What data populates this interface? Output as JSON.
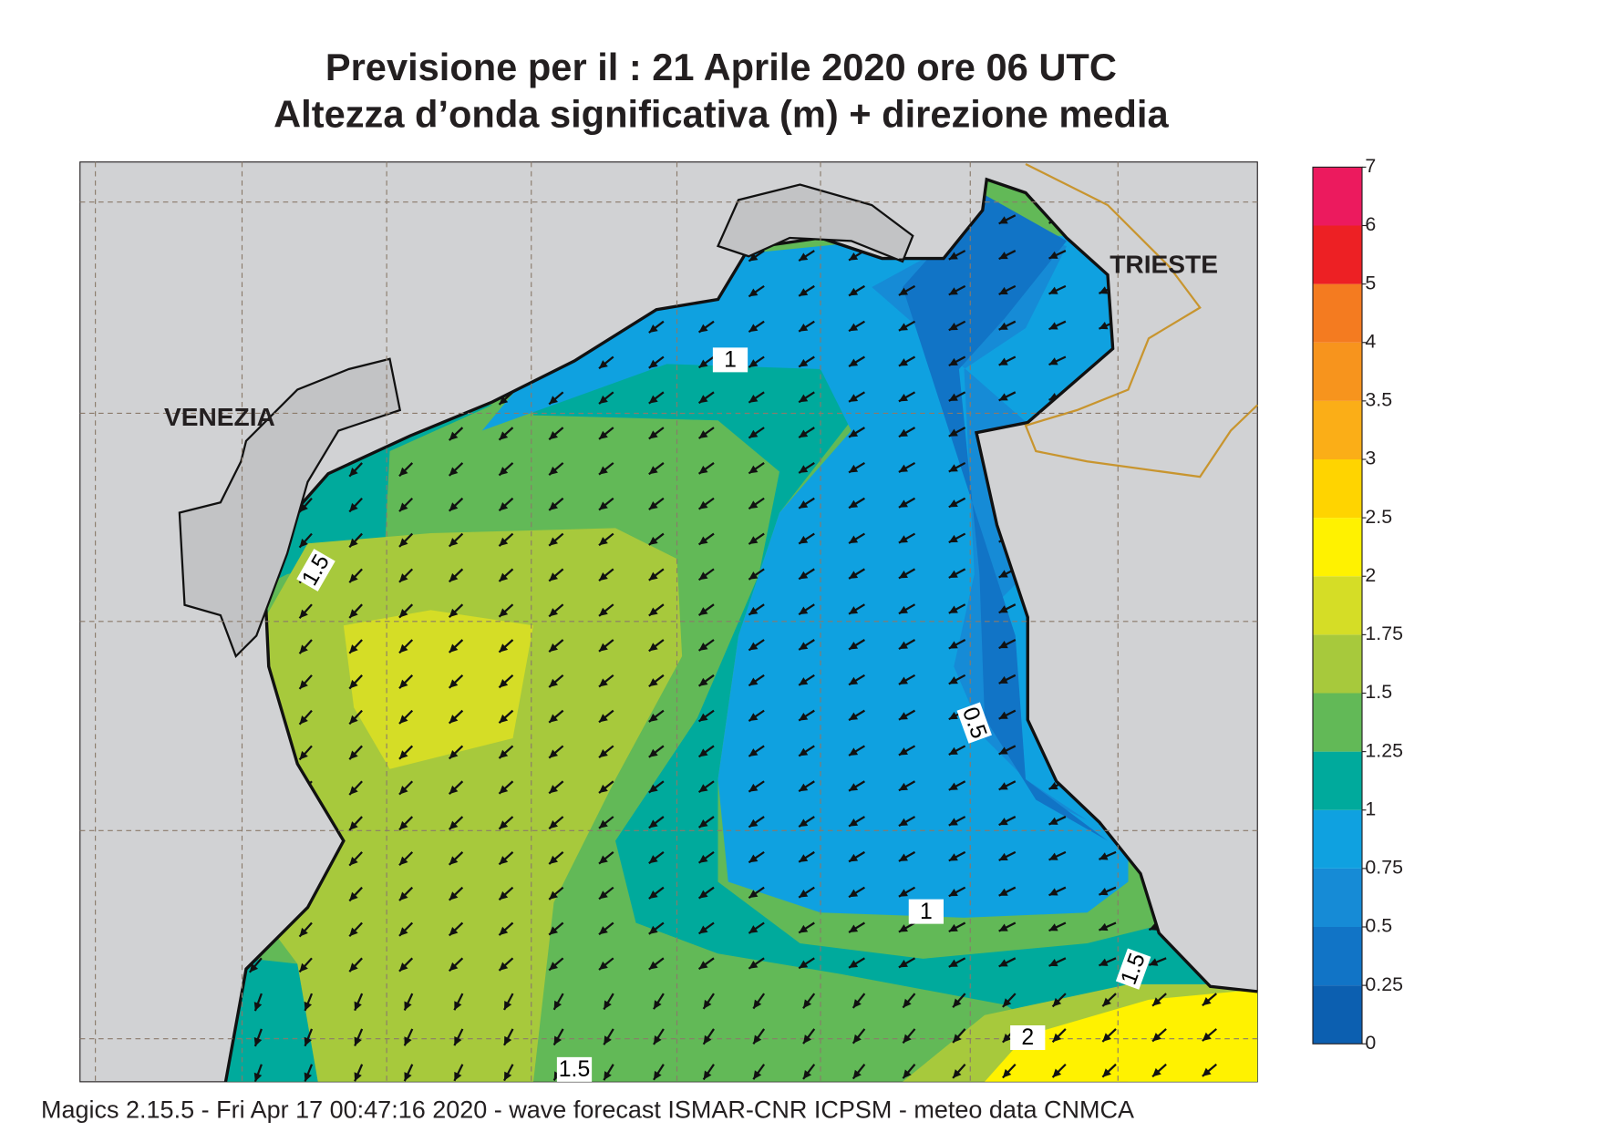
{
  "title": [
    "Previsione per il  :  21   Aprile  2020   ore 06 UTC",
    "Altezza d’onda significativa (m) + direzione media"
  ],
  "colorbar": {
    "levels": [
      0,
      0.25,
      0.5,
      0.75,
      1,
      1.25,
      1.5,
      1.75,
      2,
      2.5,
      3,
      3.5,
      4,
      5,
      6,
      7
    ],
    "colors": [
      "#0c5fb0",
      "#1174c6",
      "#168bd6",
      "#0fa1e0",
      "#00aa9c",
      "#62b957",
      "#a7c93c",
      "#d5dd26",
      "#fff200",
      "#ffd400",
      "#fbae17",
      "#f7941d",
      "#f47b20",
      "#ed2024",
      "#ec1a5e"
    ]
  },
  "places": [
    "VENEZIA",
    "TRIESTE"
  ],
  "contour_labels": [
    1,
    1.5,
    0.5,
    1,
    1.5,
    2,
    1.5
  ],
  "footer": "Magics 2.15.5 - Fri Apr 17 00:47:16 2020 - wave forecast  ISMAR-CNR  ICPSM - meteo data   CNMCA"
}
